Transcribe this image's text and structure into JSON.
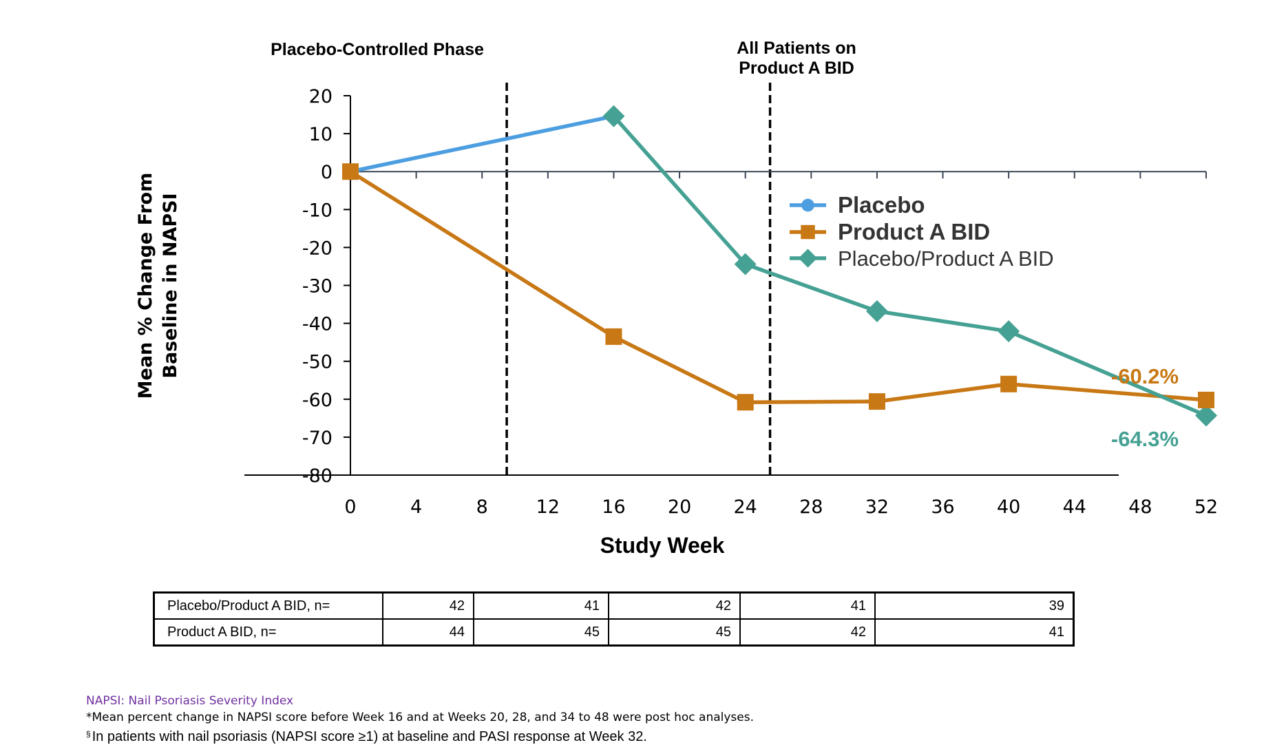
{
  "chart_data": {
    "type": "line",
    "title": "",
    "xlabel": "Study Week",
    "ylabel_lines": [
      "Mean % Change From",
      "Baseline in NAPSI"
    ],
    "xlim": [
      0,
      52
    ],
    "ylim": [
      -80,
      20
    ],
    "xticks": [
      0,
      4,
      8,
      12,
      16,
      20,
      24,
      28,
      32,
      36,
      40,
      44,
      48,
      52
    ],
    "yticks": [
      20,
      10,
      0,
      -10,
      -20,
      -30,
      -40,
      -50,
      -60,
      -70,
      -80
    ],
    "grid": false,
    "legend_position": "center-right",
    "series": [
      {
        "name": "Placebo",
        "color": "#4d9ee0",
        "marker": "circle",
        "legend_bold": true,
        "x": [
          0,
          16
        ],
        "values": [
          0,
          14.6
        ]
      },
      {
        "name": "Product A BID",
        "color": "#c87814",
        "marker": "square",
        "legend_bold": true,
        "x": [
          0,
          16,
          24,
          32,
          40,
          52
        ],
        "values": [
          0,
          -43.5,
          -60.8,
          -60.6,
          -56.0,
          -60.2
        ]
      },
      {
        "name": "Placebo/Product A BID",
        "color": "#45a193",
        "marker": "diamond",
        "legend_bold": false,
        "x": [
          16,
          24,
          32,
          40,
          52
        ],
        "values": [
          14.6,
          -24.4,
          -36.8,
          -42.1,
          -64.3
        ]
      }
    ],
    "phase_dividers": [
      {
        "week": 9.5,
        "label_lines": [
          "Placebo-Controlled Phase"
        ]
      },
      {
        "week": 25.5,
        "label_lines": [
          "All Patients on",
          "Product A BID"
        ]
      }
    ],
    "annotations": [
      {
        "text": "-60.2%",
        "series": "Product A BID",
        "week": 52,
        "color": "#c87814"
      },
      {
        "text": "-64.3%",
        "series": "Placebo/Product A BID",
        "week": 52,
        "color": "#45a193"
      }
    ]
  },
  "n_table": {
    "rows": [
      {
        "label": "Placebo/Product A BID, n=",
        "values": [
          "42",
          "41",
          "42",
          "41",
          "39"
        ]
      },
      {
        "label": "Product A BID, n=",
        "values": [
          "44",
          "45",
          "45",
          "42",
          "41"
        ]
      }
    ]
  },
  "footnotes": {
    "abbrev": "NAPSI: Nail Psoriasis Severity Index",
    "star": "*Mean percent change in NAPSI score before Week 16 and at Weeks 20, 28, and 34 to 48 were post hoc analyses.",
    "section_mark": "§",
    "section": "In patients with nail psoriasis (NAPSI score ≥1) at baseline and PASI response at Week 32."
  }
}
